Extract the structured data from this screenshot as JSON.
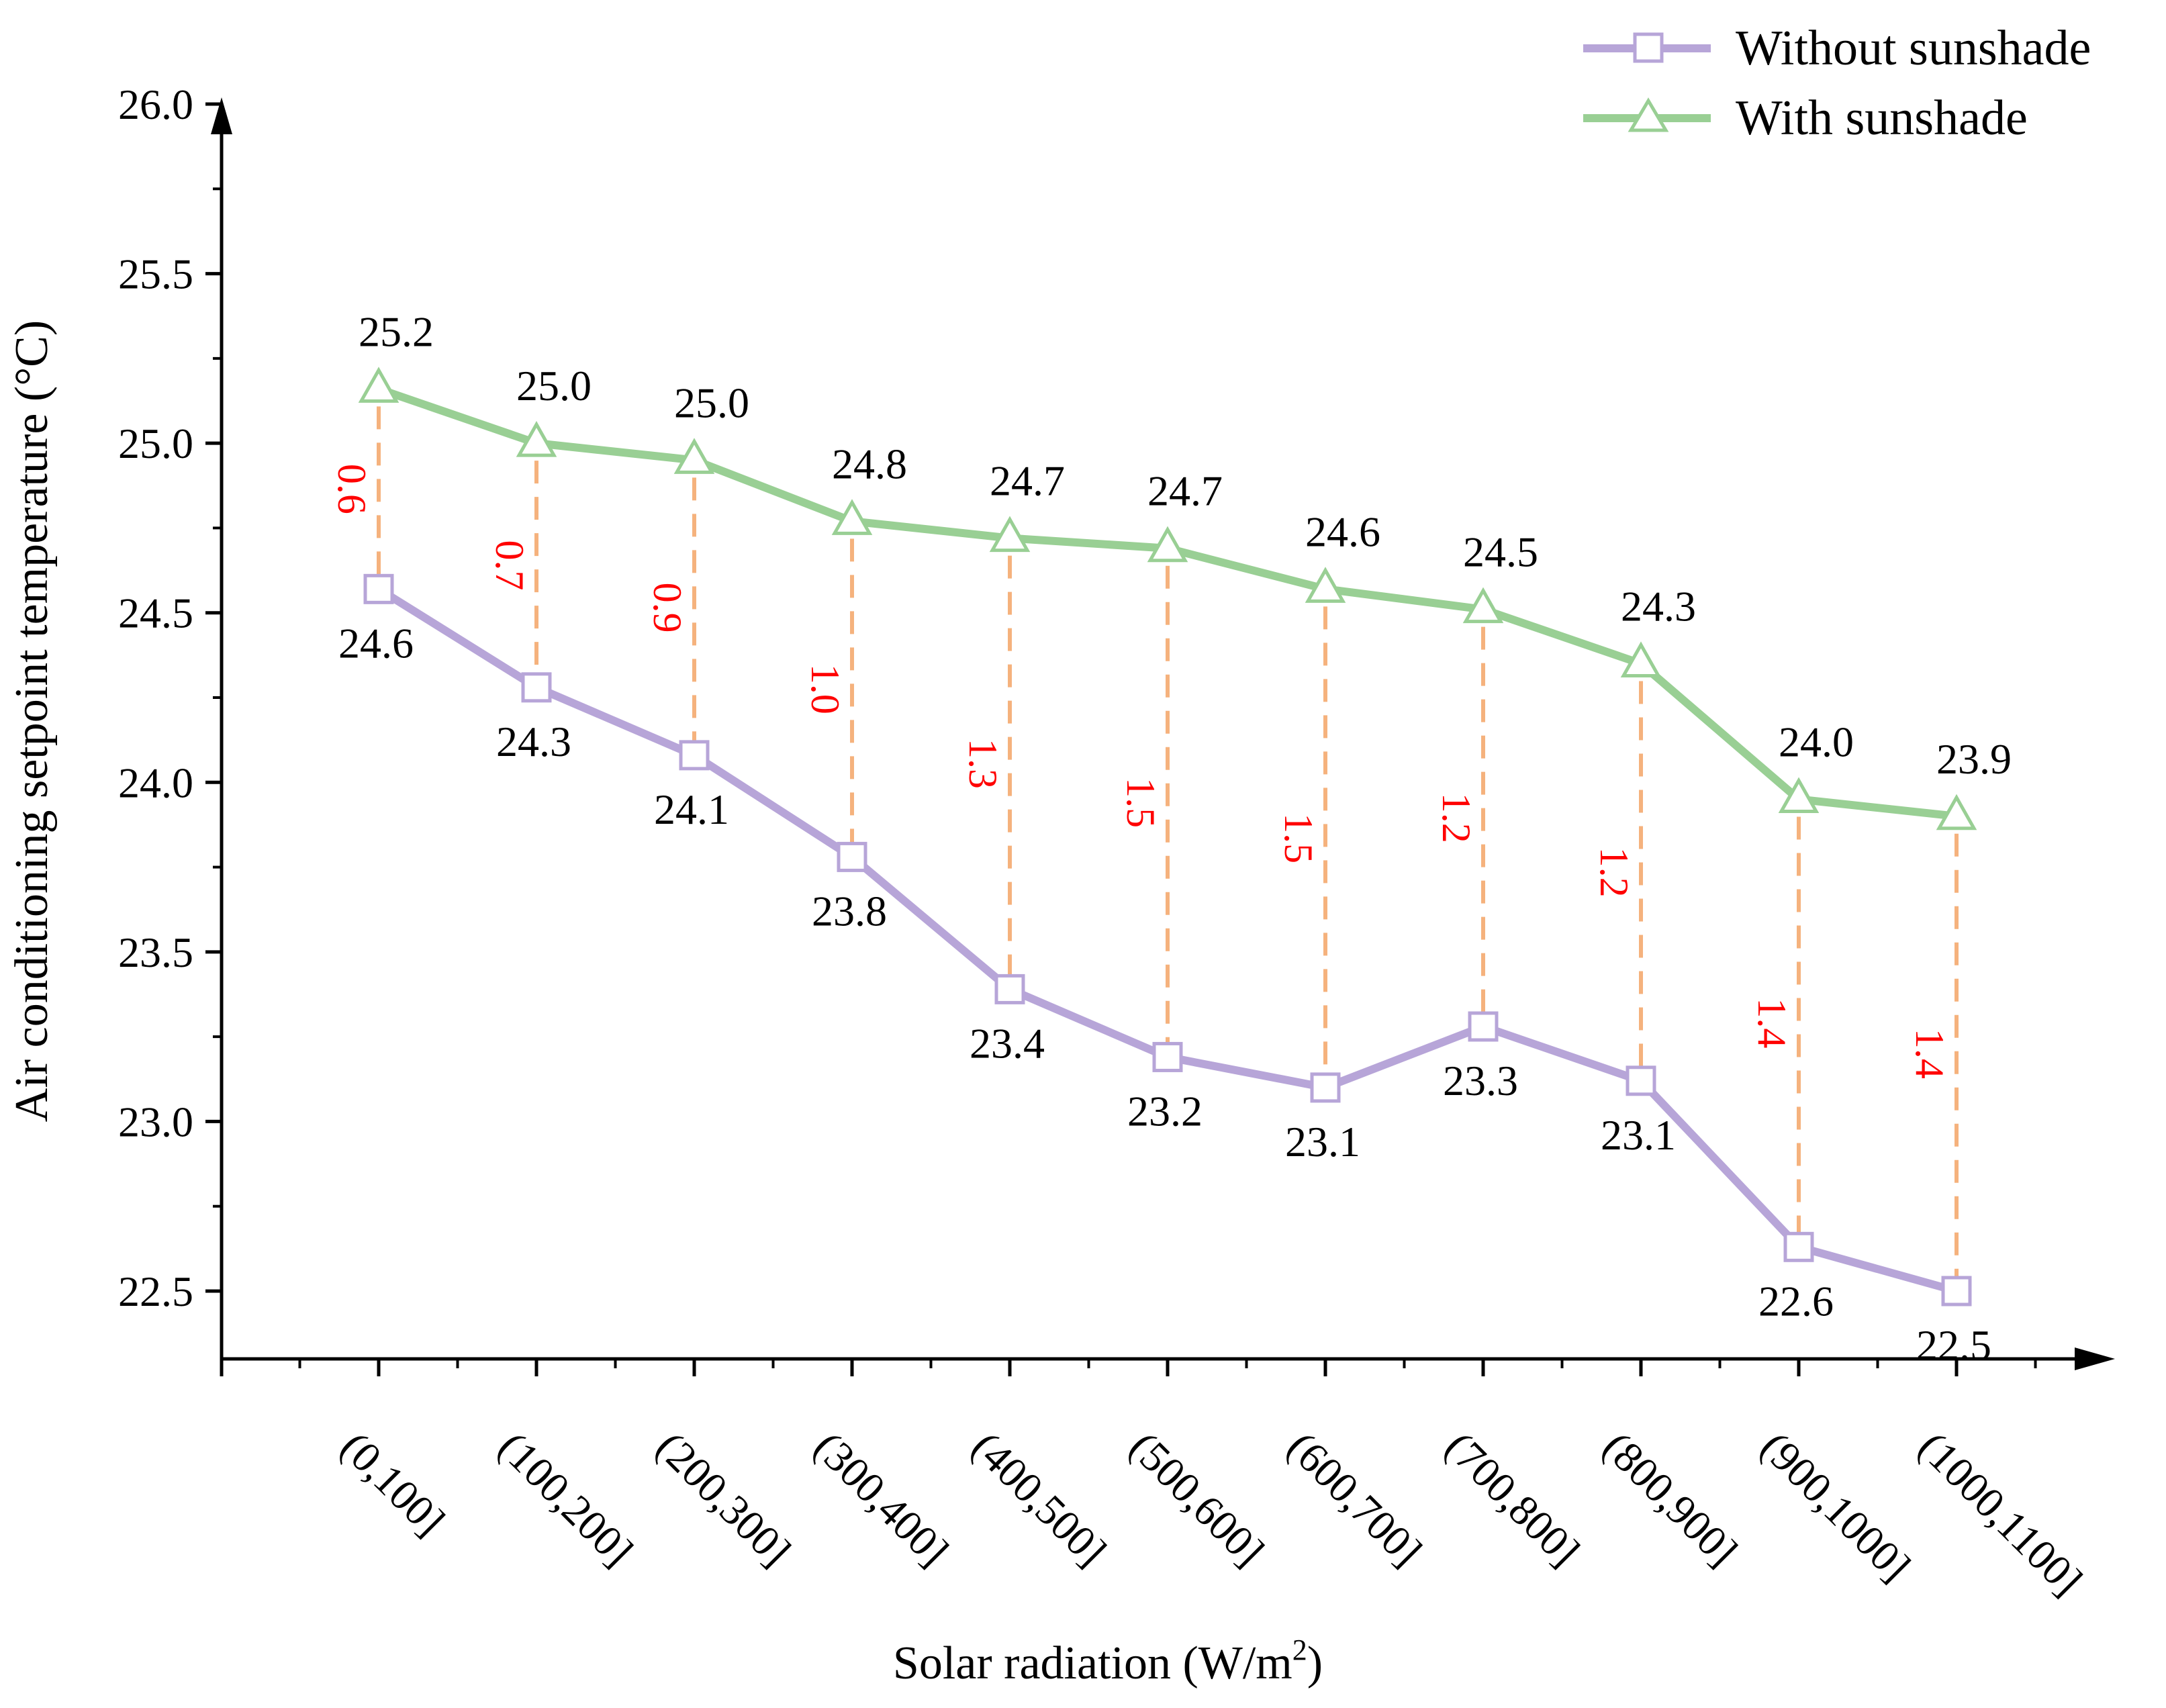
{
  "chart_data": {
    "type": "line",
    "title": "",
    "xlabel": "Solar radiation (W/m",
    "xlabel_sup": "2",
    "xlabel_tail": ")",
    "ylabel": "Air conditioning setpoint temperature (°C)",
    "ylim": [
      22.3,
      26.0
    ],
    "yticks": [
      "22.5",
      "23.0",
      "23.5",
      "24.0",
      "24.5",
      "25.0",
      "25.5",
      "26.0"
    ],
    "categories": [
      "(0,100]",
      "(100,200]",
      "(200,300]",
      "(300,400]",
      "(400,500]",
      "(500,600]",
      "(600,700]",
      "(700,800]",
      "(800,900]",
      "(900,1000]",
      "(1000,1100]"
    ],
    "series": [
      {
        "name": "Without sunshade",
        "color": "#b7a5d8",
        "marker": "square",
        "values": [
          24.57,
          24.28,
          24.08,
          23.78,
          23.39,
          23.19,
          23.1,
          23.28,
          23.12,
          22.63,
          22.5
        ],
        "labels": [
          "24.6",
          "24.3",
          "24.1",
          "23.8",
          "23.4",
          "23.2",
          "23.1",
          "23.3",
          "23.1",
          "22.6",
          "22.5"
        ]
      },
      {
        "name": "With sunshade",
        "color": "#99cf94",
        "marker": "triangle",
        "values": [
          25.16,
          25.0,
          24.95,
          24.77,
          24.72,
          24.69,
          24.57,
          24.51,
          24.35,
          23.95,
          23.9
        ],
        "labels": [
          "25.2",
          "25.0",
          "25.0",
          "24.8",
          "24.7",
          "24.7",
          "24.6",
          "24.5",
          "24.3",
          "24.0",
          "23.9"
        ]
      }
    ],
    "differences": {
      "color": "#ff0000",
      "line_color": "#f5b27d",
      "labels": [
        "0.6",
        "0.7",
        "0.9",
        "1.0",
        "1.3",
        "1.5",
        "1.5",
        "1.2",
        "1.2",
        "1.4",
        "1.4"
      ]
    },
    "legend_position": "top-right"
  }
}
